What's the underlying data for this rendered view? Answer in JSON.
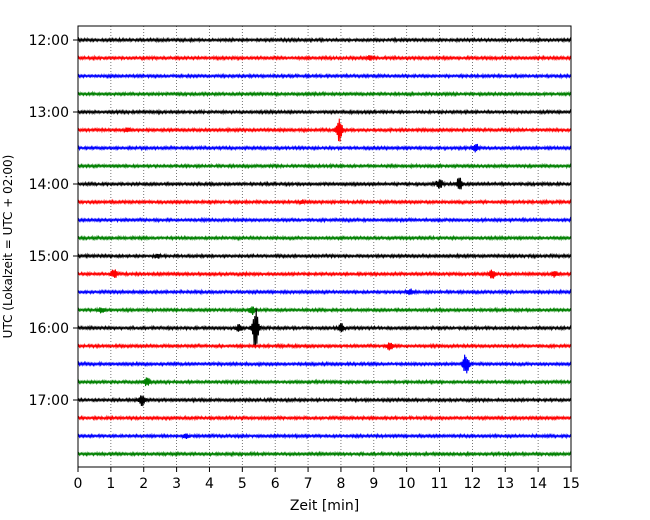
{
  "chart_data": {
    "type": "line",
    "subtype": "helicorder",
    "xlabel": "Zeit  [min]",
    "ylabel": "UTC (Lokalzeit = UTC + 02:00)",
    "xlim": [
      0,
      15
    ],
    "x_ticks": [
      0,
      1,
      2,
      3,
      4,
      5,
      6,
      7,
      8,
      9,
      10,
      11,
      12,
      13,
      14,
      15
    ],
    "x_grid": "dotted",
    "y_start": "12:00",
    "row_minutes": 15,
    "y_ticks": [
      "12:00",
      "13:00",
      "14:00",
      "15:00",
      "16:00",
      "17:00"
    ],
    "row_colors": [
      "#000000",
      "#ff0000",
      "#0000ff",
      "#008000"
    ],
    "rows": [
      {
        "start": "12:00",
        "color": "#000000",
        "events": []
      },
      {
        "start": "12:15",
        "color": "#ff0000",
        "events": [
          {
            "minute": 8.9,
            "amp": 2.5
          }
        ]
      },
      {
        "start": "12:30",
        "color": "#0000ff",
        "events": []
      },
      {
        "start": "12:45",
        "color": "#008000",
        "events": []
      },
      {
        "start": "13:00",
        "color": "#000000",
        "events": []
      },
      {
        "start": "13:15",
        "color": "#ff0000",
        "events": [
          {
            "minute": 7.95,
            "amp": 12
          },
          {
            "minute": 1.5,
            "amp": 2
          }
        ]
      },
      {
        "start": "13:30",
        "color": "#0000ff",
        "events": [
          {
            "minute": 12.1,
            "amp": 4
          }
        ]
      },
      {
        "start": "13:45",
        "color": "#008000",
        "events": []
      },
      {
        "start": "14:00",
        "color": "#000000",
        "events": [
          {
            "minute": 11.0,
            "amp": 5
          },
          {
            "minute": 11.6,
            "amp": 6
          }
        ]
      },
      {
        "start": "14:15",
        "color": "#ff0000",
        "events": [
          {
            "minute": 6.8,
            "amp": 2
          }
        ]
      },
      {
        "start": "14:30",
        "color": "#0000ff",
        "events": []
      },
      {
        "start": "14:45",
        "color": "#008000",
        "events": []
      },
      {
        "start": "15:00",
        "color": "#000000",
        "events": [
          {
            "minute": 2.4,
            "amp": 2
          }
        ]
      },
      {
        "start": "15:15",
        "color": "#ff0000",
        "events": [
          {
            "minute": 1.1,
            "amp": 5
          },
          {
            "minute": 12.6,
            "amp": 4
          },
          {
            "minute": 14.5,
            "amp": 3
          }
        ]
      },
      {
        "start": "15:30",
        "color": "#0000ff",
        "events": [
          {
            "minute": 10.1,
            "amp": 3
          }
        ]
      },
      {
        "start": "15:45",
        "color": "#008000",
        "events": [
          {
            "minute": 0.7,
            "amp": 3
          },
          {
            "minute": 5.3,
            "amp": 4
          }
        ]
      },
      {
        "start": "16:00",
        "color": "#000000",
        "events": [
          {
            "minute": 5.4,
            "amp": 22
          },
          {
            "minute": 8.0,
            "amp": 4
          },
          {
            "minute": 4.9,
            "amp": 3
          }
        ]
      },
      {
        "start": "16:15",
        "color": "#ff0000",
        "events": [
          {
            "minute": 9.5,
            "amp": 4
          }
        ]
      },
      {
        "start": "16:30",
        "color": "#0000ff",
        "events": [
          {
            "minute": 11.8,
            "amp": 10
          }
        ]
      },
      {
        "start": "16:45",
        "color": "#008000",
        "events": [
          {
            "minute": 2.1,
            "amp": 4
          }
        ]
      },
      {
        "start": "17:00",
        "color": "#000000",
        "events": [
          {
            "minute": 1.95,
            "amp": 6
          }
        ]
      },
      {
        "start": "17:15",
        "color": "#ff0000",
        "events": []
      },
      {
        "start": "17:30",
        "color": "#0000ff",
        "events": [
          {
            "minute": 3.3,
            "amp": 2
          }
        ]
      },
      {
        "start": "17:45",
        "color": "#008000",
        "events": []
      }
    ]
  }
}
